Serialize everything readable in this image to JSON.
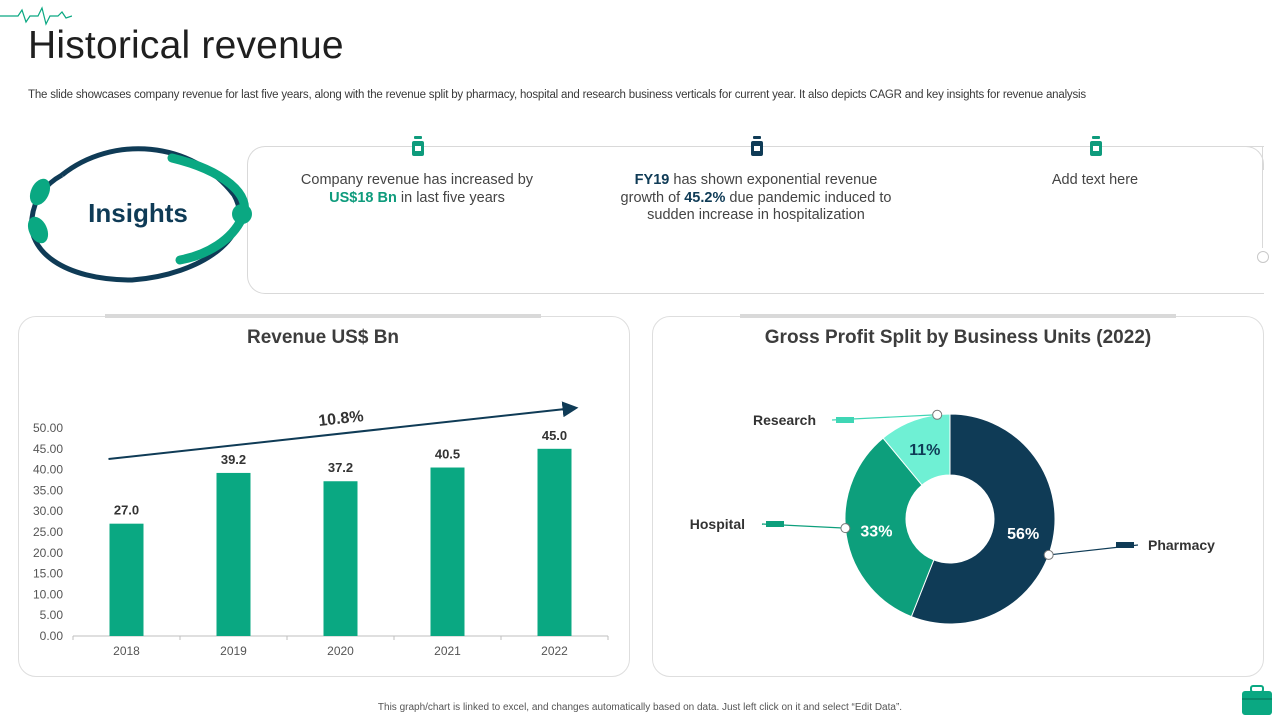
{
  "page": {
    "title": "Historical revenue",
    "subtitle": "The slide showcases company revenue for last five years, along with the revenue split by pharmacy, hospital and research business verticals for current year. It also depicts CAGR and key insights for revenue analysis",
    "footnote": "This graph/chart is linked to excel, and changes automatically based on data. Just left click on it and select “Edit Data”."
  },
  "insights": {
    "label": "Insights",
    "items": [
      {
        "parts": [
          "Company revenue has increased by",
          "US$18 Bn",
          "in last five years"
        ],
        "icon": "medicine-bottle-icon",
        "icon_color": "#0e9b7c"
      },
      {
        "parts": [
          "FY19",
          "has shown exponential revenue growth of",
          "45.2%",
          "due pandemic induced to sudden increase in hospitalization"
        ],
        "icon": "medicine-bottle-icon",
        "icon_color": "#0f3b56"
      },
      {
        "parts": [
          "Add text here"
        ],
        "icon": "medicine-bottle-icon",
        "icon_color": "#0e9b7c"
      }
    ]
  },
  "colors": {
    "accent_green": "#0aa882",
    "navy": "#0f3b56",
    "mint": "#6ff0d4",
    "mid_green": "#0d9f7c"
  },
  "chart_data": [
    {
      "type": "bar",
      "title": "Revenue US$ Bn",
      "categories": [
        "2018",
        "2019",
        "2020",
        "2021",
        "2022"
      ],
      "values": [
        27.0,
        39.2,
        37.2,
        40.5,
        45.0
      ],
      "value_labels": [
        "27.0",
        "39.2",
        "37.2",
        "40.5",
        "45.0"
      ],
      "y_ticks": [
        "0.00",
        "5.00",
        "10.00",
        "15.00",
        "20.00",
        "25.00",
        "30.00",
        "35.00",
        "40.00",
        "45.00",
        "50.00"
      ],
      "ylim": [
        0,
        50
      ],
      "annotation": "10.8%",
      "xlabel": "",
      "ylabel": "",
      "grid": false
    },
    {
      "type": "pie",
      "title": "Gross Profit Split by Business Units (2022)",
      "donut": true,
      "segments": [
        {
          "name": "Pharmacy",
          "value": 56,
          "label": "56%",
          "color": "#0f3b56"
        },
        {
          "name": "Hospital",
          "value": 33,
          "label": "33%",
          "color": "#0d9f7c"
        },
        {
          "name": "Research",
          "value": 11,
          "label": "11%",
          "color": "#6ff0d4"
        }
      ]
    }
  ]
}
